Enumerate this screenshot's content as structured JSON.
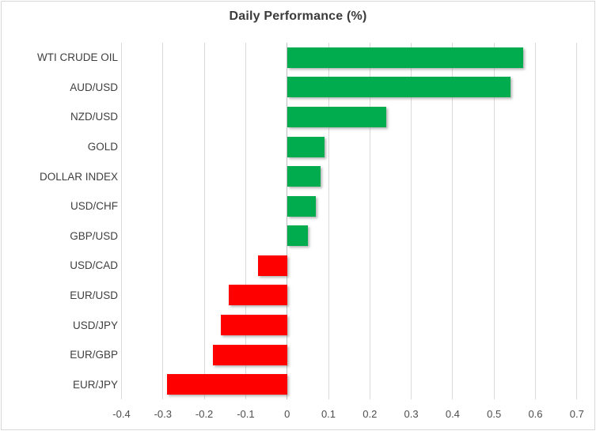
{
  "chart_data": {
    "type": "bar",
    "orientation": "horizontal",
    "title": "Daily Performance (%)",
    "categories": [
      "WTI CRUDE OIL",
      "AUD/USD",
      "NZD/USD",
      "GOLD",
      "DOLLAR INDEX",
      "USD/CHF",
      "GBP/USD",
      "USD/CAD",
      "EUR/USD",
      "USD/JPY",
      "EUR/GBP",
      "EUR/JPY"
    ],
    "values": [
      0.57,
      0.54,
      0.24,
      0.09,
      0.08,
      0.07,
      0.05,
      -0.07,
      -0.14,
      -0.16,
      -0.18,
      -0.29
    ],
    "xlabel": "",
    "ylabel": "",
    "xlim": [
      -0.4,
      0.7
    ],
    "x_ticks": [
      -0.4,
      -0.3,
      -0.2,
      -0.1,
      0,
      0.1,
      0.2,
      0.3,
      0.4,
      0.5,
      0.6,
      0.7
    ],
    "x_tick_labels": [
      "-0.4",
      "-0.3",
      "-0.2",
      "-0.1",
      "0",
      "0.1",
      "0.2",
      "0.3",
      "0.4",
      "0.5",
      "0.6",
      "0.7"
    ],
    "grid": "vertical",
    "legend": "none",
    "colors": {
      "positive": "#00ac4e",
      "negative": "#ff0000",
      "gridline": "#d9d9d9",
      "zero_axis": "#bfbfbf",
      "title_text": "#3b3b3b",
      "label_text": "#3f3f3f",
      "tick_text": "#4d4d4d",
      "border": "#d7d7d7"
    }
  }
}
